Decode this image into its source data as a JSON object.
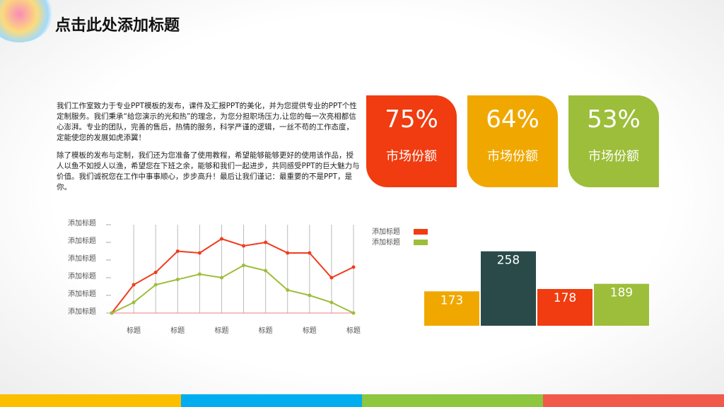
{
  "header": {
    "title": "点击此处添加标题"
  },
  "paragraphs": [
    "我们工作室致力于专业PPT模板的发布，课件及汇报PPT的美化，并为您提供专业的PPT个性定制服务。我们秉承“给您演示的光和热”的理念，为您分担职场压力,让您的每一次亮相都信心澎湃。专业的团队，完善的售后，热情的服务，科学严谨的逻辑，一丝不苟的工作态度，定能使您的发展如虎添翼！",
    "除了模板的发布与定制，我们还为您准备了使用教程，希望能够能够更好的使用该作品，授人以鱼不如授人以渔，希望您在下班之余，能够和我们一起进步，共同感受PPT的巨大魅力与价值。我们诚祝您在工作中事事顺心，步步高升！最后让我们谨记：最重要的不是PPT，是你。"
  ],
  "cards": [
    {
      "value": "75%",
      "label": "市场份额",
      "color": "#f03c10"
    },
    {
      "value": "64%",
      "label": "市场份额",
      "color": "#f0a800"
    },
    {
      "value": "53%",
      "label": "市场份额",
      "color": "#9dbe3a"
    }
  ],
  "chart_data": [
    {
      "type": "line",
      "categories": [
        null,
        "标题",
        null,
        "标题",
        null,
        "标题",
        null,
        "标题",
        null,
        "标题",
        null,
        "标题"
      ],
      "series": [
        {
          "name": "red",
          "color": "#f03c1e",
          "values": [
            0,
            1.6,
            2.3,
            3.5,
            3.4,
            4.2,
            3.8,
            4.0,
            3.4,
            3.4,
            2.0,
            2.6
          ]
        },
        {
          "name": "green",
          "color": "#9dbe3a",
          "values": [
            0,
            0.6,
            1.6,
            1.9,
            2.2,
            2.0,
            2.7,
            2.4,
            1.3,
            1.0,
            0.6,
            0
          ]
        }
      ],
      "ylim": [
        0,
        5
      ],
      "yticks": [
        {
          "value": 0,
          "label": "添加标题"
        },
        {
          "value": 1,
          "label": "添加标题"
        },
        {
          "value": 2,
          "label": "添加标题"
        },
        {
          "value": 3,
          "label": "添加标题"
        },
        {
          "value": 4,
          "label": "添加标题"
        },
        {
          "value": 5,
          "label": "添加标题"
        }
      ],
      "grid": true
    },
    {
      "type": "bar",
      "values": [
        173,
        258,
        178,
        189
      ],
      "colors": [
        "#f0a800",
        "#2a4a4a",
        "#f03c10",
        "#9dbe3a"
      ],
      "legend": [
        {
          "name": "添加标题",
          "color": "#f03c10"
        },
        {
          "name": "添加标题",
          "color": "#9dbe3a"
        }
      ],
      "ylim": [
        100,
        280
      ]
    }
  ]
}
